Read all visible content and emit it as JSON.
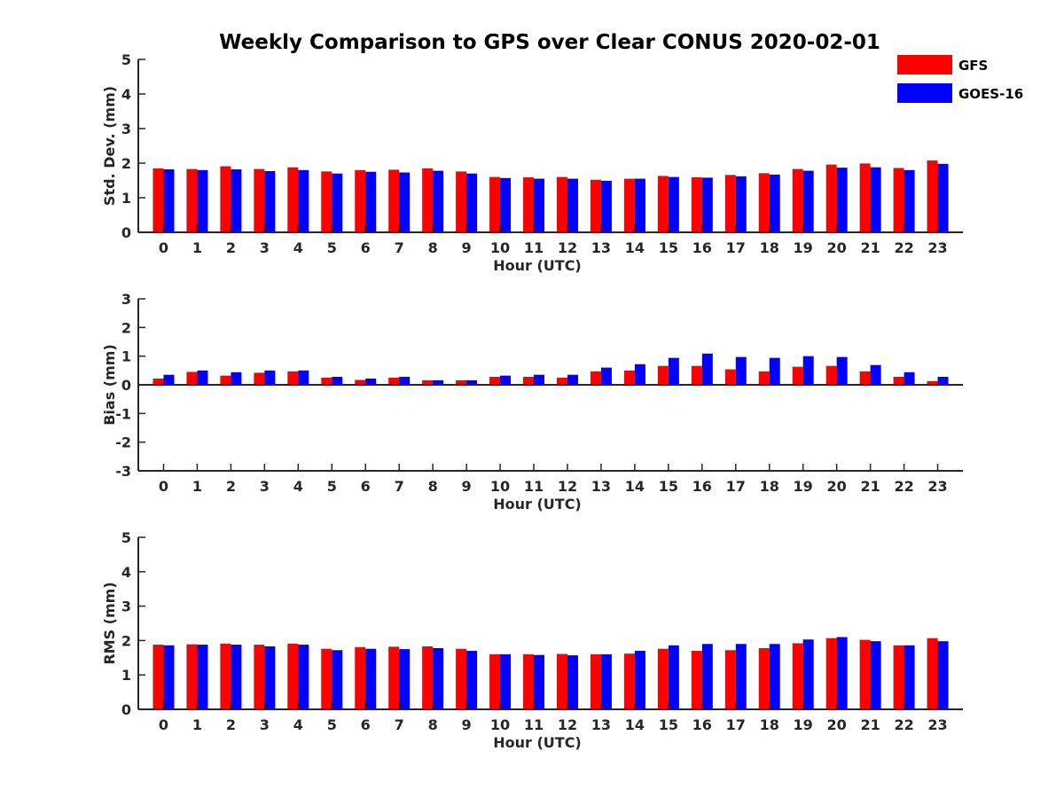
{
  "title": "Weekly Comparison to GPS over Clear CONUS 2020-02-01",
  "legend": {
    "placement": "top-right",
    "entries": [
      {
        "label": "GFS",
        "color": "#ff0000"
      },
      {
        "label": "GOES-16",
        "color": "#0000ff"
      }
    ]
  },
  "chart_data": [
    {
      "type": "bar",
      "xlabel": "Hour (UTC)",
      "ylabel": "Std. Dev. (mm)",
      "ylim": [
        0,
        5
      ],
      "yticks": [
        0,
        1,
        2,
        3,
        4,
        5
      ],
      "categories": [
        "0",
        "1",
        "2",
        "3",
        "4",
        "5",
        "6",
        "7",
        "8",
        "9",
        "10",
        "11",
        "12",
        "13",
        "14",
        "15",
        "16",
        "17",
        "18",
        "19",
        "20",
        "21",
        "22",
        "23"
      ],
      "series": [
        {
          "name": "GFS",
          "color": "#ff0000",
          "values": [
            1.85,
            1.83,
            1.91,
            1.83,
            1.88,
            1.76,
            1.8,
            1.81,
            1.85,
            1.76,
            1.6,
            1.59,
            1.6,
            1.52,
            1.55,
            1.63,
            1.59,
            1.66,
            1.71,
            1.83,
            1.96,
            1.99,
            1.86,
            2.08
          ]
        },
        {
          "name": "GOES-16",
          "color": "#0000ff",
          "values": [
            1.82,
            1.8,
            1.82,
            1.77,
            1.8,
            1.7,
            1.75,
            1.73,
            1.78,
            1.7,
            1.57,
            1.55,
            1.55,
            1.49,
            1.55,
            1.6,
            1.58,
            1.62,
            1.67,
            1.78,
            1.87,
            1.88,
            1.8,
            1.98
          ]
        }
      ]
    },
    {
      "type": "bar",
      "xlabel": "Hour (UTC)",
      "ylabel": "Bias (mm)",
      "ylim": [
        -3,
        3
      ],
      "yticks": [
        -3,
        -2,
        -1,
        0,
        1,
        2,
        3
      ],
      "categories": [
        "0",
        "1",
        "2",
        "3",
        "4",
        "5",
        "6",
        "7",
        "8",
        "9",
        "10",
        "11",
        "12",
        "13",
        "14",
        "15",
        "16",
        "17",
        "18",
        "19",
        "20",
        "21",
        "22",
        "23"
      ],
      "series": [
        {
          "name": "GFS",
          "color": "#ff0000",
          "values": [
            0.22,
            0.45,
            0.32,
            0.42,
            0.47,
            0.25,
            0.17,
            0.25,
            0.16,
            0.16,
            0.28,
            0.28,
            0.25,
            0.47,
            0.5,
            0.66,
            0.66,
            0.54,
            0.47,
            0.63,
            0.66,
            0.47,
            0.28,
            0.13
          ]
        },
        {
          "name": "GOES-16",
          "color": "#0000ff",
          "values": [
            0.35,
            0.5,
            0.44,
            0.5,
            0.5,
            0.28,
            0.22,
            0.28,
            0.16,
            0.16,
            0.32,
            0.35,
            0.35,
            0.6,
            0.72,
            0.94,
            1.09,
            0.97,
            0.94,
            1.0,
            0.97,
            0.69,
            0.44,
            0.28
          ]
        }
      ]
    },
    {
      "type": "bar",
      "xlabel": "Hour (UTC)",
      "ylabel": "RMS (mm)",
      "ylim": [
        0,
        5
      ],
      "yticks": [
        0,
        1,
        2,
        3,
        4,
        5
      ],
      "categories": [
        "0",
        "1",
        "2",
        "3",
        "4",
        "5",
        "6",
        "7",
        "8",
        "9",
        "10",
        "11",
        "12",
        "13",
        "14",
        "15",
        "16",
        "17",
        "18",
        "19",
        "20",
        "21",
        "22",
        "23"
      ],
      "series": [
        {
          "name": "GFS",
          "color": "#ff0000",
          "values": [
            1.88,
            1.89,
            1.91,
            1.88,
            1.91,
            1.76,
            1.81,
            1.82,
            1.83,
            1.76,
            1.6,
            1.6,
            1.61,
            1.6,
            1.62,
            1.76,
            1.7,
            1.72,
            1.78,
            1.92,
            2.07,
            2.02,
            1.86,
            2.07
          ]
        },
        {
          "name": "GOES-16",
          "color": "#0000ff",
          "values": [
            1.86,
            1.88,
            1.88,
            1.83,
            1.88,
            1.72,
            1.76,
            1.75,
            1.78,
            1.7,
            1.6,
            1.58,
            1.57,
            1.6,
            1.7,
            1.86,
            1.9,
            1.9,
            1.9,
            2.03,
            2.1,
            1.98,
            1.86,
            1.98
          ]
        }
      ]
    }
  ]
}
